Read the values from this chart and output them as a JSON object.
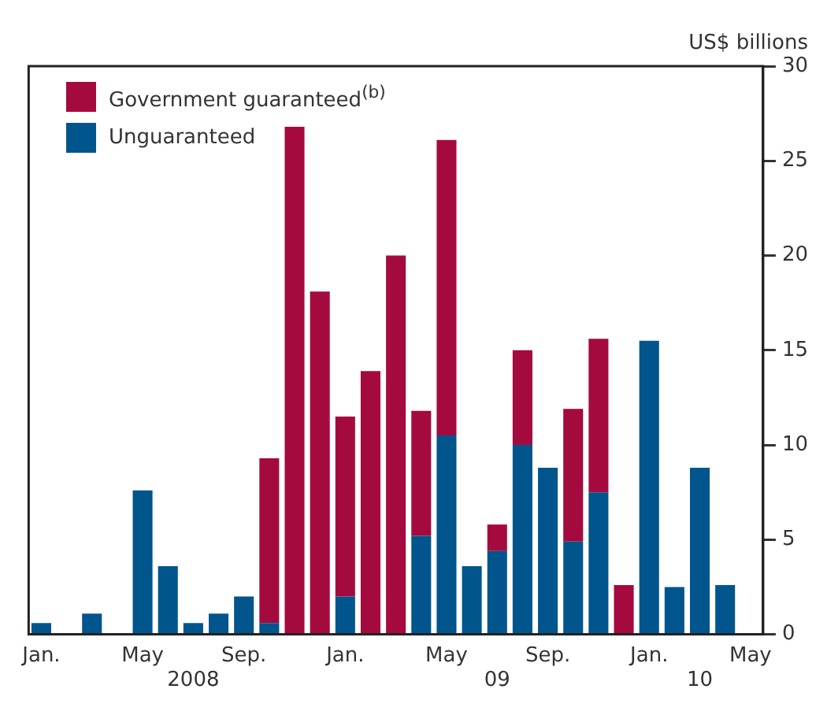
{
  "chart_data": {
    "type": "bar",
    "stacked": true,
    "ylabel": "US$ billions",
    "categories": [
      "Jan.",
      null,
      null,
      null,
      "May",
      null,
      "\n2008",
      null,
      "Sep.",
      null,
      null,
      null,
      "Jan.",
      null,
      null,
      null,
      "May",
      null,
      "\n09",
      null,
      "Sep.",
      null,
      null,
      null,
      "Jan.",
      null,
      "\n10",
      null,
      "May"
    ],
    "series": [
      {
        "name": "Unguaranteed",
        "color": "#00558c",
        "values": [
          0.6,
          null,
          1.1,
          null,
          7.6,
          3.6,
          0.6,
          1.1,
          2.0,
          0.6,
          null,
          null,
          2.0,
          null,
          null,
          5.2,
          10.5,
          3.6,
          4.4,
          10.0,
          8.8,
          4.9,
          7.5,
          null,
          15.5,
          2.5,
          8.8,
          2.6,
          null
        ]
      },
      {
        "name": "Government guaranteed$^{(b)}$",
        "color": "#a50a3f",
        "values": [
          null,
          null,
          null,
          null,
          null,
          null,
          null,
          null,
          null,
          8.7,
          26.8,
          18.1,
          9.5,
          13.9,
          20.0,
          6.6,
          15.6,
          null,
          1.4,
          5.0,
          null,
          7.0,
          8.1,
          2.6,
          null,
          null,
          null,
          null,
          null
        ]
      }
    ],
    "ylim": [
      0,
      30
    ],
    "yticks": [
      0,
      5,
      10,
      15,
      20,
      25,
      30
    ],
    "grid": false,
    "legend": "top left"
  }
}
